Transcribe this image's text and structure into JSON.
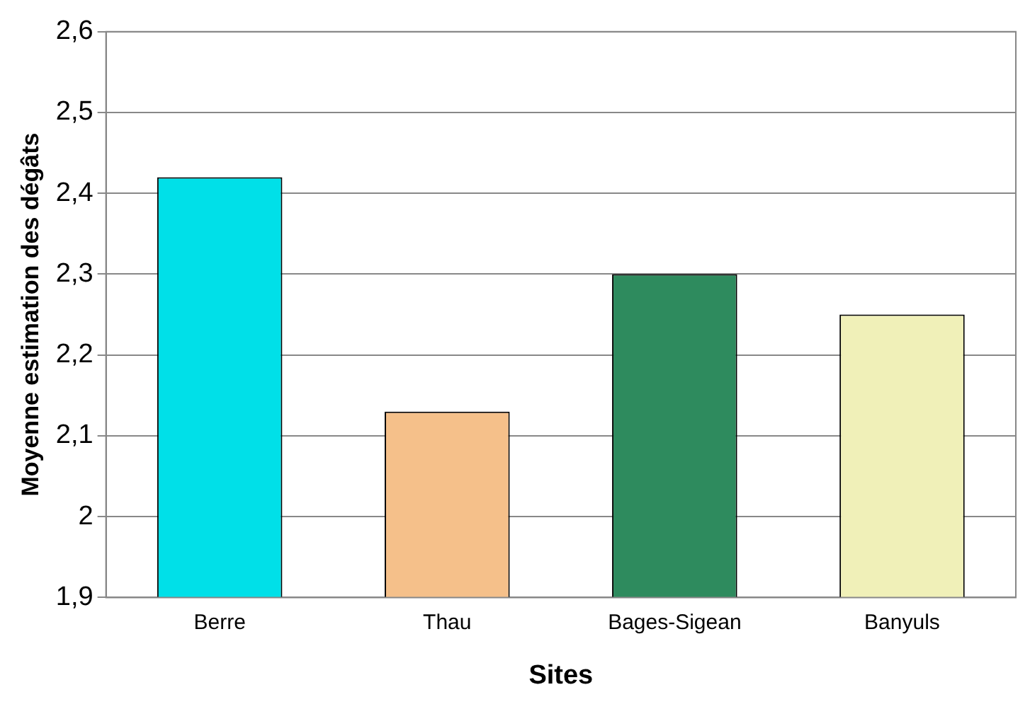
{
  "chart_data": {
    "type": "bar",
    "xlabel": "Sites",
    "ylabel": "Moyenne estimation des dégâts",
    "categories": [
      "Berre",
      "Thau",
      "Bages-Sigean",
      "Banyuls"
    ],
    "values": [
      2.42,
      2.13,
      2.3,
      2.25
    ],
    "colors": [
      "#00e0e8",
      "#f5c08a",
      "#2e8b5e",
      "#f0f0b8"
    ],
    "ylim": [
      1.9,
      2.6
    ],
    "yticks": [
      {
        "value": 1.9,
        "label": "1,9"
      },
      {
        "value": 2,
        "label": "2"
      },
      {
        "value": 2.1,
        "label": "2,1"
      },
      {
        "value": 2.2,
        "label": "2,2"
      },
      {
        "value": 2.3,
        "label": "2,3"
      },
      {
        "value": 2.4,
        "label": "2,4"
      },
      {
        "value": 2.5,
        "label": "2,5"
      },
      {
        "value": 2.6,
        "label": "2,6"
      }
    ],
    "grid": "y",
    "legend": false
  }
}
